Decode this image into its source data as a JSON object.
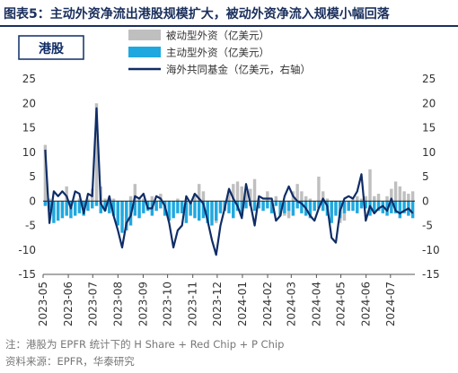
{
  "figure_title": "图表5：主动外资净流出港股规模扩大，被动外资净流入规模小幅回落",
  "note": "注：港股为 EPFR 统计下的 H Share + Red Chip + P Chip",
  "source": "资料来源：EPFR，华泰研究",
  "colors": {
    "passive": "#bfbfbf",
    "active": "#1fa8e0",
    "fund": "#0f2d66",
    "title": "#1a2f5c"
  },
  "chart_data": {
    "type": "bar",
    "panel_label": "港股",
    "legend": {
      "position": "top-right",
      "items": [
        "被动型外资（亿美元）",
        "主动型外资（亿美元）",
        "海外共同基金（亿美元，右轴）"
      ]
    },
    "grid": false,
    "left_axis": {
      "ylim": [
        -15,
        25
      ],
      "ticks": [
        "-15",
        "-10",
        "-5",
        "0",
        "5",
        "10",
        "15",
        "20",
        "25"
      ]
    },
    "right_axis": {
      "ylim": [
        -15,
        25
      ],
      "ticks": [
        "-15",
        "-10",
        "-5",
        "0",
        "5",
        "10",
        "15",
        "20",
        "25"
      ]
    },
    "x_tick_labels": [
      "2023-05",
      "2023-06",
      "2023-07",
      "2023-08",
      "2023-09",
      "2023-10",
      "2023-11",
      "2023-12",
      "2024-01",
      "2024-02",
      "2024-03",
      "2024-04",
      "2024-05",
      "2024-06",
      "2024-07"
    ],
    "x_range": [
      "2023-05-01",
      "2024-07-31"
    ],
    "series": [
      {
        "name": "被动型外资（亿美元）",
        "kind": "bar",
        "values": [
          11.5,
          0.5,
          -3.0,
          -2.5,
          -2.0,
          3.0,
          -1.0,
          -2.0,
          0.5,
          -1.0,
          0.5,
          2.5,
          20.0,
          3.0,
          0.5,
          -0.5,
          0.5,
          -4.0,
          -3.0,
          -1.5,
          1.0,
          3.5,
          0.5,
          0.5,
          -1.0,
          1.0,
          -2.0,
          1.5,
          -2.5,
          -3.0,
          -0.5,
          0.5,
          -2.5,
          -3.0,
          -1.5,
          1.5,
          3.5,
          2.0,
          -2.0,
          -4.0,
          -4.5,
          -2.0,
          -1.0,
          2.0,
          3.5,
          4.0,
          3.0,
          2.0,
          2.5,
          4.5,
          0.5,
          -1.5,
          2.0,
          -0.5,
          1.0,
          -1.0,
          -3.0,
          -3.5,
          2.0,
          3.5,
          2.0,
          1.0,
          0.5,
          -0.5,
          5.0,
          2.0,
          0.5,
          -2.5,
          -2.5,
          -4.5,
          -4.0,
          -1.0,
          0.5,
          1.0,
          0.5,
          1.0,
          6.5,
          1.0,
          1.5,
          -1.0,
          1.0,
          2.5,
          4.0,
          3.0,
          2.0,
          1.5,
          2.0
        ]
      },
      {
        "name": "主动型外资（亿美元）",
        "kind": "bar",
        "values": [
          -1.0,
          -2.0,
          -4.5,
          -4.0,
          -3.5,
          -3.0,
          -3.5,
          -3.0,
          -2.5,
          -3.0,
          -2.0,
          -1.5,
          -1.0,
          -2.5,
          -2.0,
          -2.5,
          -3.0,
          -5.0,
          -6.5,
          -6.0,
          -5.0,
          -3.0,
          -3.5,
          -2.5,
          -2.0,
          -3.0,
          -2.0,
          -1.5,
          -3.0,
          -4.0,
          -3.5,
          -2.5,
          -2.5,
          -4.5,
          -3.0,
          -3.5,
          -4.0,
          -3.5,
          -4.5,
          -5.0,
          -4.0,
          -2.5,
          -2.0,
          -2.5,
          -3.5,
          -2.0,
          -3.0,
          -1.5,
          -1.0,
          -2.0,
          -1.5,
          -2.0,
          -1.5,
          -2.5,
          -1.0,
          -3.0,
          -2.5,
          -2.0,
          -3.0,
          -1.5,
          -2.5,
          -3.0,
          -3.5,
          -2.0,
          -1.5,
          -2.0,
          -3.0,
          -4.5,
          -3.0,
          -3.5,
          -2.5,
          -2.0,
          -2.0,
          -2.5,
          -1.5,
          -1.5,
          -3.0,
          -2.5,
          -2.0,
          -2.5,
          -3.0,
          -2.5,
          -2.5,
          -3.5,
          -2.5,
          -3.0,
          -3.5
        ]
      },
      {
        "name": "海外共同基金（亿美元，右轴）",
        "kind": "line",
        "axis": "right",
        "values": [
          10.5,
          -4.5,
          2.0,
          1.0,
          2.0,
          1.0,
          -1.5,
          2.0,
          1.5,
          -2.5,
          1.5,
          1.0,
          19.0,
          -0.5,
          -2.0,
          1.0,
          -3.0,
          -6.0,
          -9.5,
          -4.5,
          -3.0,
          1.0,
          0.5,
          1.5,
          -1.5,
          -1.5,
          1.0,
          0.5,
          -1.0,
          -4.5,
          -9.5,
          -6.0,
          -5.0,
          1.0,
          -0.5,
          1.5,
          0.5,
          -0.5,
          -4.0,
          -8.0,
          -11.0,
          -5.0,
          -1.5,
          2.5,
          0.5,
          -1.0,
          -3.5,
          3.5,
          -0.5,
          -5.0,
          1.0,
          0.5,
          0.5,
          0.5,
          -4.0,
          -3.0,
          1.0,
          3.0,
          1.0,
          0.0,
          -0.5,
          -1.5,
          -3.0,
          -4.0,
          -1.5,
          0.5,
          -1.0,
          -7.5,
          -8.5,
          -2.0,
          0.5,
          1.0,
          0.5,
          2.0,
          5.5,
          -4.0,
          -1.0,
          -2.5,
          -1.5,
          -1.0,
          -2.0,
          0.5,
          -2.0,
          -2.5,
          -2.0,
          -1.5,
          -2.5
        ]
      }
    ]
  }
}
